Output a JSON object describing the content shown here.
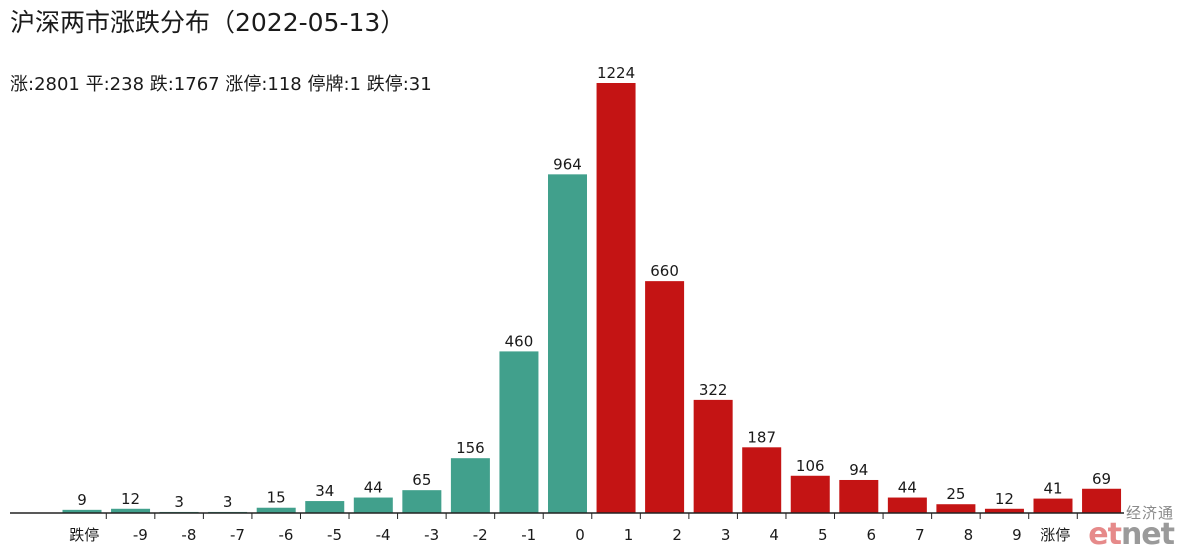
{
  "title": "沪深两市涨跌分布（2022-05-13）",
  "subtitle": "涨:2801 平:238 跌:1767 涨停:118 停牌:1 跌停:31",
  "watermark": {
    "cn": "经济通",
    "en_e": "et",
    "en_rest": "net"
  },
  "colors": {
    "down": "#41a08c",
    "up": "#c41414",
    "axis": "#222222"
  },
  "chart_data": {
    "type": "bar",
    "bars": [
      {
        "label": "9",
        "value": 9,
        "group": "down"
      },
      {
        "label": "12",
        "value": 12,
        "group": "down"
      },
      {
        "label": "3",
        "value": 3,
        "group": "down"
      },
      {
        "label": "3",
        "value": 3,
        "group": "down"
      },
      {
        "label": "15",
        "value": 15,
        "group": "down"
      },
      {
        "label": "34",
        "value": 34,
        "group": "down"
      },
      {
        "label": "44",
        "value": 44,
        "group": "down"
      },
      {
        "label": "65",
        "value": 65,
        "group": "down"
      },
      {
        "label": "156",
        "value": 156,
        "group": "down"
      },
      {
        "label": "460",
        "value": 460,
        "group": "down"
      },
      {
        "label": "964",
        "value": 964,
        "group": "down"
      },
      {
        "label": "1224",
        "value": 1224,
        "group": "up"
      },
      {
        "label": "660",
        "value": 660,
        "group": "up"
      },
      {
        "label": "322",
        "value": 322,
        "group": "up"
      },
      {
        "label": "187",
        "value": 187,
        "group": "up"
      },
      {
        "label": "106",
        "value": 106,
        "group": "up"
      },
      {
        "label": "94",
        "value": 94,
        "group": "up"
      },
      {
        "label": "44",
        "value": 44,
        "group": "up"
      },
      {
        "label": "25",
        "value": 25,
        "group": "up"
      },
      {
        "label": "12",
        "value": 12,
        "group": "up"
      },
      {
        "label": "41",
        "value": 41,
        "group": "up"
      },
      {
        "label": "69",
        "value": 69,
        "group": "up"
      }
    ],
    "ticks": [
      "跌停",
      "-9",
      "-8",
      "-7",
      "-6",
      "-5",
      "-4",
      "-3",
      "-2",
      "-1",
      "0",
      "1",
      "2",
      "3",
      "4",
      "5",
      "6",
      "7",
      "8",
      "9",
      "涨停"
    ],
    "ylim": [
      0,
      1224
    ],
    "grid": false,
    "legend": "none"
  }
}
